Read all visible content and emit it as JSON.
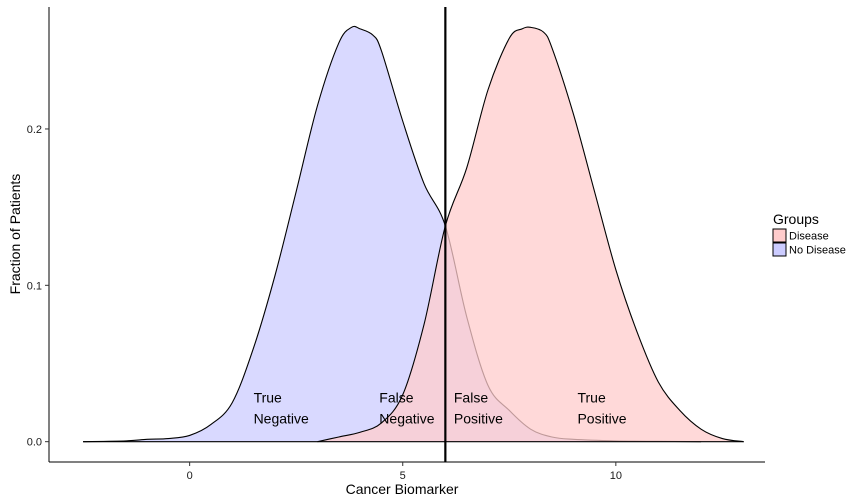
{
  "chart_data": {
    "type": "area",
    "title": "",
    "xlabel": "Cancer Biomarker",
    "ylabel": "Fraction of Patients",
    "xlim": [
      -3.3,
      13.5
    ],
    "ylim": [
      -0.013,
      0.278
    ],
    "x_ticks": [
      {
        "value": 0,
        "label": "0"
      },
      {
        "value": 5,
        "label": "5"
      },
      {
        "value": 10,
        "label": "10"
      }
    ],
    "y_ticks": [
      {
        "value": 0.0,
        "label": "0.0"
      },
      {
        "value": 0.1,
        "label": "0.1"
      },
      {
        "value": 0.2,
        "label": "0.2"
      }
    ],
    "grid": false,
    "threshold": 6.0,
    "legend": {
      "title": "Groups",
      "position": "right",
      "entries": [
        {
          "label": "Disease",
          "color": "#ffcccc"
        },
        {
          "label": "No Disease",
          "color": "#ccccff"
        }
      ]
    },
    "series": [
      {
        "name": "No Disease",
        "fill": "#ccccff",
        "stroke": "#000000",
        "x": [
          -2.5,
          -1.5,
          -1.0,
          -0.5,
          0.0,
          0.5,
          1.0,
          1.5,
          2.0,
          2.5,
          3.0,
          3.5,
          3.8,
          4.0,
          4.3,
          4.5,
          5.0,
          5.5,
          6.0,
          6.5,
          7.0,
          7.5,
          8.0,
          8.5,
          9.0,
          10.0,
          11.0,
          12.0
        ],
        "y": [
          0.0,
          0.0005,
          0.0015,
          0.002,
          0.004,
          0.011,
          0.025,
          0.06,
          0.106,
          0.16,
          0.215,
          0.255,
          0.265,
          0.264,
          0.26,
          0.25,
          0.205,
          0.165,
          0.138,
          0.08,
          0.036,
          0.02,
          0.008,
          0.003,
          0.0015,
          0.0005,
          0.0002,
          0.0
        ]
      },
      {
        "name": "Disease",
        "fill": "#ffcccc",
        "stroke": "#000000",
        "x": [
          3.0,
          3.5,
          4.0,
          4.5,
          5.0,
          5.5,
          6.0,
          6.5,
          7.0,
          7.5,
          7.8,
          8.0,
          8.3,
          8.5,
          9.0,
          9.5,
          10.0,
          10.5,
          11.0,
          11.5,
          12.0,
          12.5,
          13.0
        ],
        "y": [
          0.0,
          0.003,
          0.006,
          0.012,
          0.03,
          0.075,
          0.138,
          0.175,
          0.225,
          0.258,
          0.264,
          0.265,
          0.262,
          0.252,
          0.21,
          0.16,
          0.11,
          0.07,
          0.038,
          0.02,
          0.008,
          0.002,
          0.0
        ]
      }
    ],
    "annotations": [
      {
        "line1": "True",
        "line2": "Negative",
        "x": 1.5,
        "y": 0.025
      },
      {
        "line1": "False",
        "line2": "Negative",
        "x": 4.45,
        "y": 0.025
      },
      {
        "line1": "False",
        "line2": "Positive",
        "x": 6.2,
        "y": 0.025
      },
      {
        "line1": "True",
        "line2": "Positive",
        "x": 9.1,
        "y": 0.025
      }
    ]
  }
}
